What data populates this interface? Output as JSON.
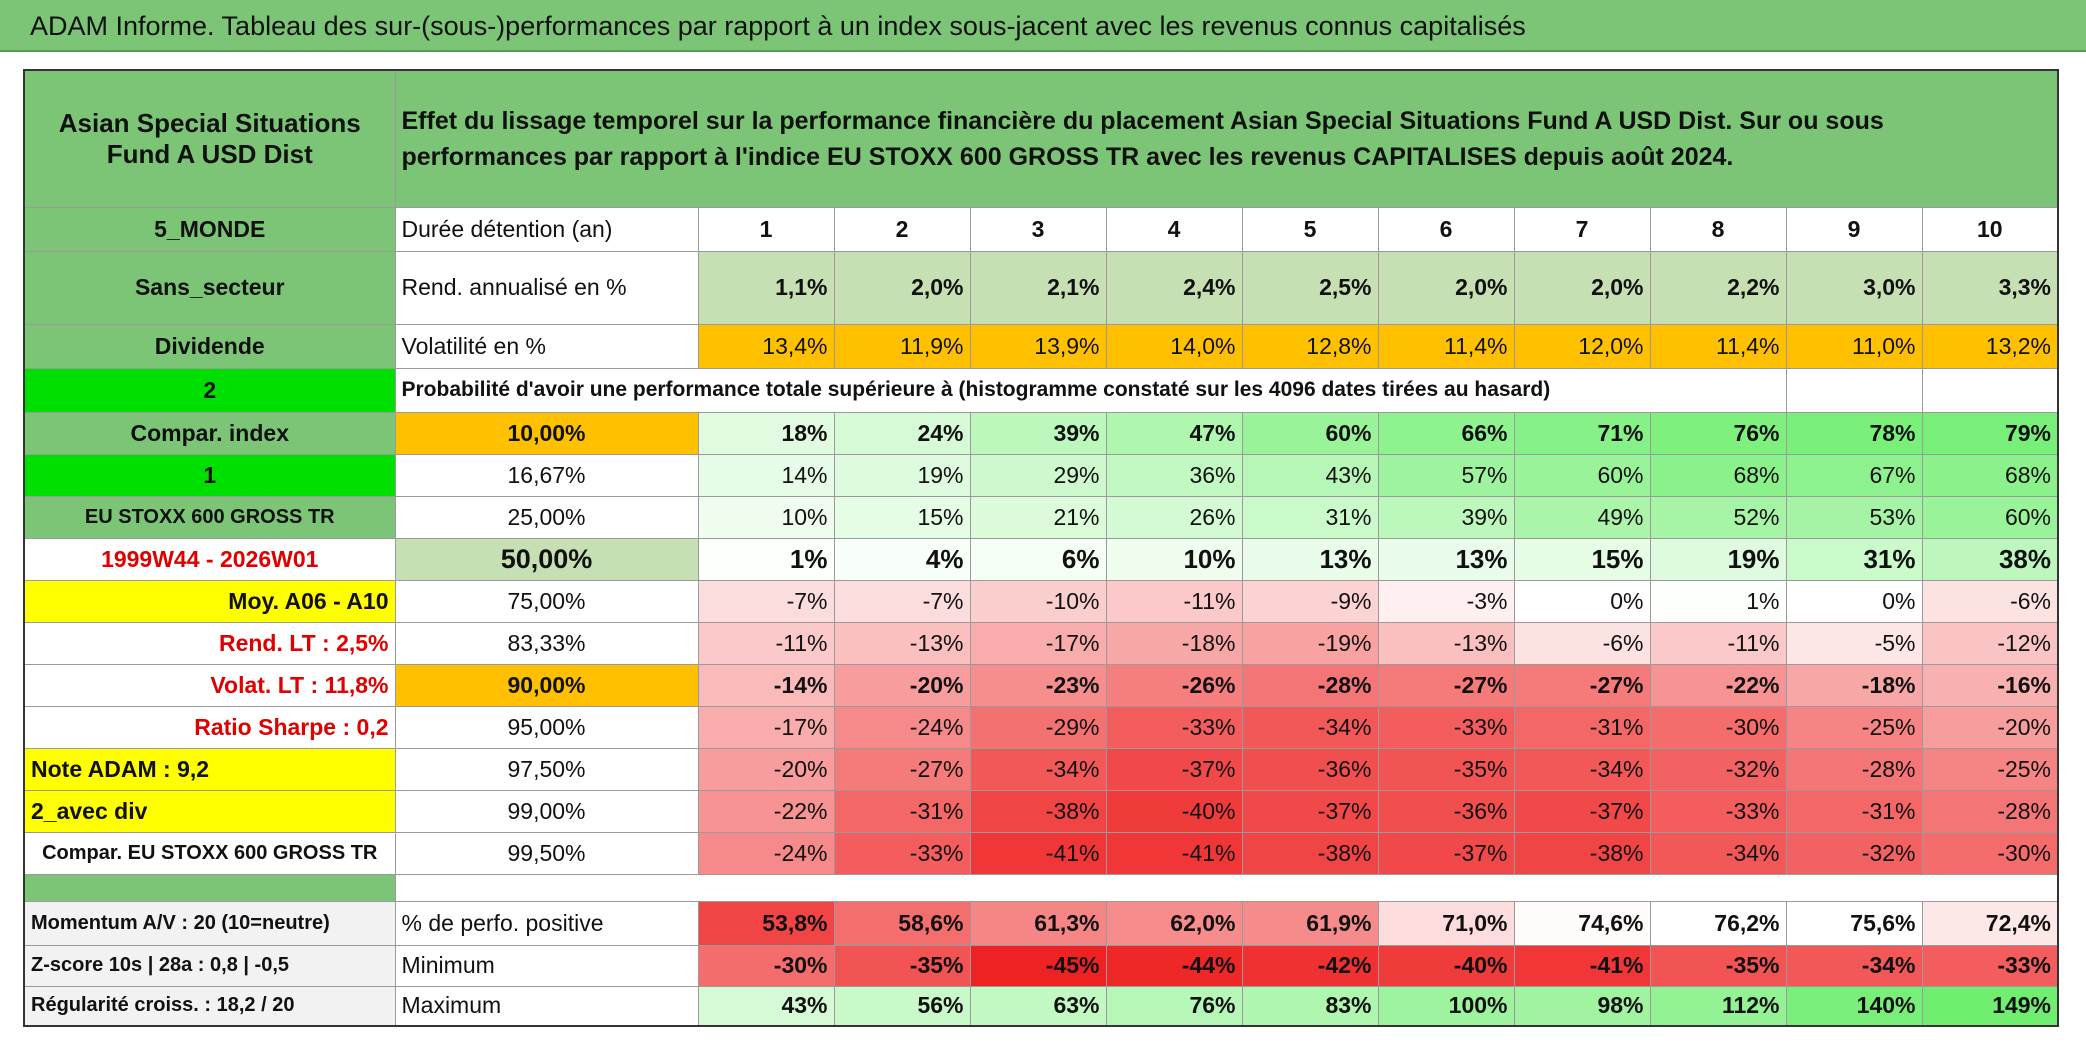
{
  "title": "ADAM Informe. Tableau des sur-(sous-)performances par rapport à un index sous-jacent avec les revenus connus capitalisés",
  "table": {
    "header": [
      "Asian Special Situations Fund A USD Dist",
      "Effet du lissage temporel sur la performance financière du placement Asian Special Situations Fund A USD Dist. Sur ou sous performances par rapport à l'indice EU STOXX 600 GROSS TR avec les revenus CAPITALISES depuis août 2024."
    ],
    "rows": [
      [
        "5_MONDE",
        "Durée détention (an)",
        1,
        2,
        3,
        4,
        5,
        6,
        7,
        8,
        9,
        10
      ],
      [
        "Sans_secteur",
        "Rend. annualisé en %",
        "1,1%",
        "2,0%",
        "2,1%",
        "2,4%",
        "2,5%",
        "2,0%",
        "2,0%",
        "2,2%",
        "3,0%",
        "3,3%"
      ],
      [
        "Dividende",
        "Volatilité en %",
        "13,4%",
        "11,9%",
        "13,9%",
        "14,0%",
        "12,8%",
        "11,4%",
        "12,0%",
        "11,4%",
        "11,0%",
        "13,2%"
      ],
      [
        "2",
        "Probabilité d'avoir une performance totale supérieure à (histogramme constaté sur les 4096 dates tirées au hasard)"
      ],
      [
        "Compar. index",
        "10,00%",
        "18%",
        "24%",
        "39%",
        "47%",
        "60%",
        "66%",
        "71%",
        "76%",
        "78%",
        "79%"
      ],
      [
        "1",
        "16,67%",
        "14%",
        "19%",
        "29%",
        "36%",
        "43%",
        "57%",
        "60%",
        "68%",
        "67%",
        "68%"
      ],
      [
        "EU STOXX 600 GROSS TR",
        "25,00%",
        "10%",
        "15%",
        "21%",
        "26%",
        "31%",
        "39%",
        "49%",
        "52%",
        "53%",
        "60%"
      ],
      [
        "1999W44 - 2026W01",
        "50,00%",
        "1%",
        "4%",
        "6%",
        "10%",
        "13%",
        "13%",
        "15%",
        "19%",
        "31%",
        "38%"
      ],
      [
        "Moy. A06 - A10",
        "75,00%",
        "-7%",
        "-7%",
        "-10%",
        "-11%",
        "-9%",
        "-3%",
        "0%",
        "1%",
        "0%",
        "-6%"
      ],
      [
        "Rend. LT :   2,5%",
        "83,33%",
        "-11%",
        "-13%",
        "-17%",
        "-18%",
        "-19%",
        "-13%",
        "-6%",
        "-11%",
        "-5%",
        "-12%"
      ],
      [
        "Volat. LT :   11,8%",
        "90,00%",
        "-14%",
        "-20%",
        "-23%",
        "-26%",
        "-28%",
        "-27%",
        "-27%",
        "-22%",
        "-18%",
        "-16%"
      ],
      [
        "Ratio Sharpe :   0,2",
        "95,00%",
        "-17%",
        "-24%",
        "-29%",
        "-33%",
        "-34%",
        "-33%",
        "-31%",
        "-30%",
        "-25%",
        "-20%"
      ],
      [
        "Note ADAM : 9,2",
        "97,50%",
        "-20%",
        "-27%",
        "-34%",
        "-37%",
        "-36%",
        "-35%",
        "-34%",
        "-32%",
        "-28%",
        "-25%"
      ],
      [
        "2_avec div",
        "99,00%",
        "-22%",
        "-31%",
        "-38%",
        "-40%",
        "-37%",
        "-36%",
        "-37%",
        "-33%",
        "-31%",
        "-28%"
      ],
      [
        "Compar. EU STOXX 600 GROSS TR",
        "99,50%",
        "-24%",
        "-33%",
        "-41%",
        "-41%",
        "-38%",
        "-37%",
        "-38%",
        "-34%",
        "-32%",
        "-30%"
      ],
      [
        "Momentum A/V : 20 (10=neutre)",
        "% de perfo. positive",
        "53,8%",
        "58,6%",
        "61,3%",
        "62,0%",
        "61,9%",
        "71,0%",
        "74,6%",
        "76,2%",
        "75,6%",
        "72,4%"
      ],
      [
        "Z-score 10s | 28a : 0,8 | -0,5",
        "Minimum",
        "-30%",
        "-35%",
        "-45%",
        "-44%",
        "-42%",
        "-40%",
        "-41%",
        "-35%",
        "-34%",
        "-33%"
      ],
      [
        "Régularité croiss. : 18,2 / 20",
        "Maximum",
        "43%",
        "56%",
        "63%",
        "76%",
        "83%",
        "100%",
        "98%",
        "112%",
        "140%",
        "149%"
      ]
    ]
  }
}
